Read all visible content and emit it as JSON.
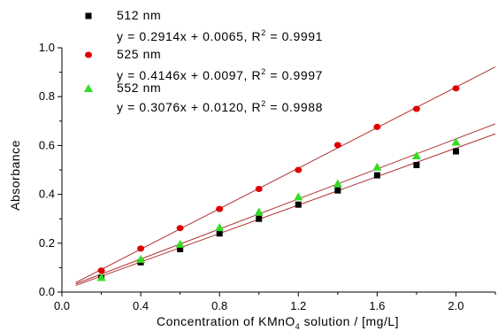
{
  "chart_data": {
    "type": "scatter",
    "xlabel_main": "Concentration of KMnO",
    "xlabel_sub": "4",
    "xlabel_rest": " solution / [mg/L]",
    "ylabel": "Absorbance",
    "xlim": [
      0.0,
      2.2
    ],
    "ylim": [
      0.0,
      1.0
    ],
    "xticks": [
      "0.0",
      "0.4",
      "0.8",
      "1.2",
      "1.6",
      "2.0"
    ],
    "yticks": [
      "0.0",
      "0.2",
      "0.4",
      "0.6",
      "0.8",
      "1.0"
    ],
    "grid": false,
    "legend_position": "top-left",
    "series": [
      {
        "name": "512 nm",
        "marker": "square",
        "color": "#000000",
        "equation": "y = 0.2914x + 0.0065,  R",
        "r2_exp": "2",
        "r2_value": " = 0.9991",
        "slope": 0.2914,
        "intercept": 0.0065,
        "x": [
          0.2,
          0.4,
          0.6,
          0.8,
          1.0,
          1.2,
          1.4,
          1.6,
          1.8,
          2.0
        ],
        "y": [
          0.058,
          0.122,
          0.176,
          0.24,
          0.3,
          0.358,
          0.416,
          0.478,
          0.52,
          0.576
        ]
      },
      {
        "name": "525 nm",
        "marker": "circle",
        "color": "#e00000",
        "equation": "y = 0.4146x + 0.0097,  R",
        "r2_exp": "2",
        "r2_value": " = 0.9997",
        "slope": 0.4146,
        "intercept": 0.0097,
        "x": [
          0.2,
          0.4,
          0.6,
          0.8,
          1.0,
          1.2,
          1.4,
          1.6,
          1.8,
          2.0
        ],
        "y": [
          0.088,
          0.178,
          0.262,
          0.34,
          0.422,
          0.5,
          0.602,
          0.676,
          0.75,
          0.834
        ]
      },
      {
        "name": "552 nm",
        "marker": "triangle",
        "color": "#33dd22",
        "equation": "y = 0.3076x + 0.0120, R",
        "r2_exp": "2",
        "r2_value": " = 0.9988",
        "slope": 0.3076,
        "intercept": 0.012,
        "x": [
          0.2,
          0.4,
          0.6,
          0.8,
          1.0,
          1.2,
          1.4,
          1.6,
          1.8,
          2.0
        ],
        "y": [
          0.06,
          0.134,
          0.196,
          0.264,
          0.328,
          0.39,
          0.444,
          0.512,
          0.558,
          0.614
        ]
      }
    ],
    "fit_line_color": "#b03030",
    "fit_x_range": [
      0.07,
      2.2
    ]
  }
}
